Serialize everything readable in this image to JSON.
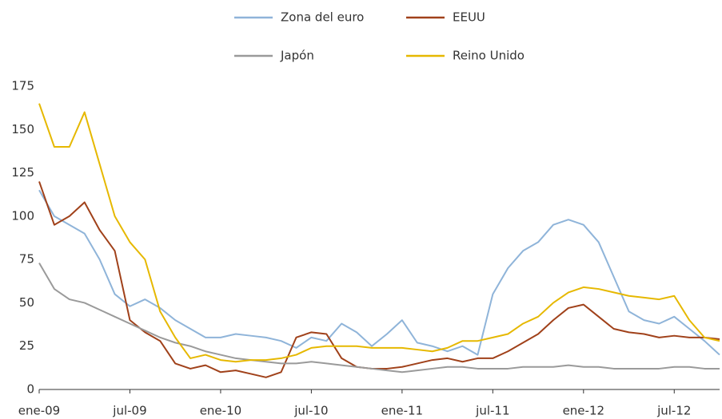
{
  "chart_data": {
    "type": "line",
    "x": [
      0,
      1,
      2,
      3,
      4,
      5,
      6,
      7,
      8,
      9,
      10,
      11,
      12,
      13,
      14,
      15,
      16,
      17,
      18,
      19,
      20,
      21,
      22,
      23,
      24,
      25,
      26,
      27,
      28,
      29,
      30,
      31,
      32,
      33,
      34,
      35,
      36,
      37,
      38,
      39,
      40,
      41,
      42,
      43,
      44,
      45
    ],
    "series": [
      {
        "name": "Zona del euro",
        "color": "#8fb4d9",
        "values": [
          115,
          100,
          95,
          90,
          75,
          55,
          48,
          52,
          47,
          40,
          35,
          30,
          30,
          32,
          31,
          30,
          28,
          24,
          30,
          28,
          38,
          33,
          25,
          32,
          40,
          27,
          25,
          22,
          25,
          20,
          55,
          70,
          80,
          85,
          95,
          98,
          95,
          85,
          65,
          45,
          40,
          38,
          42,
          35,
          28,
          20
        ]
      },
      {
        "name": "EEUU",
        "color": "#a0411a",
        "values": [
          120,
          95,
          100,
          108,
          92,
          80,
          40,
          33,
          28,
          15,
          12,
          14,
          10,
          11,
          9,
          7,
          10,
          30,
          33,
          32,
          18,
          13,
          12,
          12,
          13,
          15,
          17,
          18,
          16,
          18,
          18,
          22,
          27,
          32,
          40,
          47,
          49,
          42,
          35,
          33,
          32,
          30,
          31,
          30,
          30,
          29
        ]
      },
      {
        "name": "Japón",
        "color": "#9a9a9a",
        "values": [
          73,
          58,
          52,
          50,
          46,
          42,
          38,
          34,
          30,
          27,
          25,
          22,
          20,
          18,
          17,
          16,
          15,
          15,
          16,
          15,
          14,
          13,
          12,
          11,
          10,
          11,
          12,
          13,
          13,
          12,
          12,
          12,
          13,
          13,
          13,
          14,
          13,
          13,
          12,
          12,
          12,
          12,
          13,
          13,
          12,
          12
        ]
      },
      {
        "name": "Reino Unido",
        "color": "#e6b800",
        "values": [
          165,
          140,
          140,
          160,
          130,
          100,
          85,
          75,
          45,
          30,
          18,
          20,
          17,
          16,
          17,
          17,
          18,
          20,
          24,
          25,
          25,
          25,
          24,
          24,
          24,
          23,
          22,
          24,
          28,
          28,
          30,
          32,
          38,
          42,
          50,
          56,
          59,
          58,
          56,
          54,
          53,
          52,
          54,
          40,
          30,
          28
        ]
      }
    ],
    "xlim": [
      0,
      45
    ],
    "xticks": [
      {
        "value": 0,
        "label": "ene-09"
      },
      {
        "value": 6,
        "label": "jul-09"
      },
      {
        "value": 12,
        "label": "ene-10"
      },
      {
        "value": 18,
        "label": "jul-10"
      },
      {
        "value": 24,
        "label": "ene-11"
      },
      {
        "value": 30,
        "label": "jul-11"
      },
      {
        "value": 36,
        "label": "ene-12"
      },
      {
        "value": 42,
        "label": "jul-12"
      }
    ],
    "ylim": [
      0,
      175
    ],
    "yticks": [
      0,
      25,
      50,
      75,
      100,
      125,
      150,
      175
    ],
    "grid": false,
    "legend": "top"
  }
}
